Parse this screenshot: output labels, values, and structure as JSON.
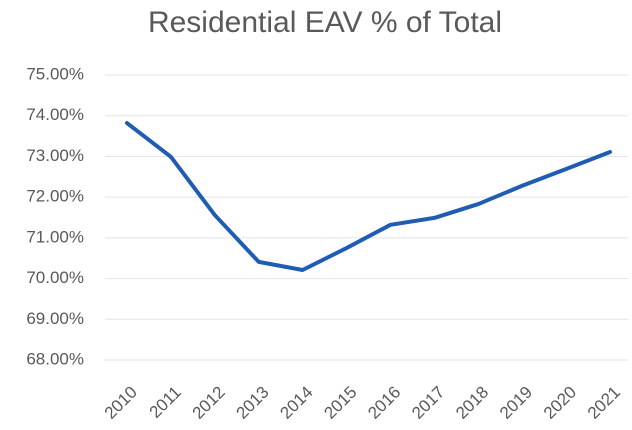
{
  "chart_data": {
    "type": "line",
    "title": "Residential EAV % of Total",
    "categories": [
      "2010",
      "2011",
      "2012",
      "2013",
      "2014",
      "2015",
      "2016",
      "2017",
      "2018",
      "2019",
      "2020",
      "2021"
    ],
    "series": [
      {
        "name": "Residential EAV % of Total",
        "color": "#1f5db3",
        "values": [
          73.82,
          72.99,
          71.56,
          70.41,
          70.21,
          70.75,
          71.32,
          71.49,
          71.83,
          72.28,
          72.69,
          73.11
        ]
      }
    ],
    "ylim": [
      68,
      75
    ],
    "yticks": [
      {
        "value": 68,
        "label": "68.00%"
      },
      {
        "value": 69,
        "label": "69.00%"
      },
      {
        "value": 70,
        "label": "70.00%"
      },
      {
        "value": 71,
        "label": "71.00%"
      },
      {
        "value": 72,
        "label": "72.00%"
      },
      {
        "value": 73,
        "label": "73.00%"
      },
      {
        "value": 74,
        "label": "74.00%"
      },
      {
        "value": 75,
        "label": "75.00%"
      }
    ],
    "grid": true
  }
}
